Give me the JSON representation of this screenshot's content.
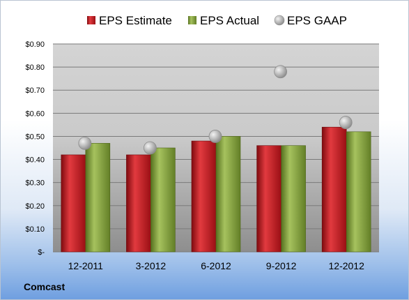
{
  "chart_data": {
    "type": "bar",
    "title": "",
    "xlabel": "",
    "ylabel": "",
    "categories": [
      "12-2011",
      "3-2012",
      "6-2012",
      "9-2012",
      "12-2012"
    ],
    "series": [
      {
        "name": "EPS Estimate",
        "kind": "bar",
        "color": "#c0161c",
        "values": [
          0.42,
          0.42,
          0.48,
          0.46,
          0.54
        ]
      },
      {
        "name": "EPS Actual",
        "kind": "bar",
        "color": "#7f9a3a",
        "values": [
          0.47,
          0.45,
          0.5,
          0.46,
          0.52
        ]
      },
      {
        "name": "EPS GAAP",
        "kind": "scatter",
        "color": "#a8a8a8",
        "values": [
          0.47,
          0.45,
          0.5,
          0.78,
          0.56
        ]
      }
    ],
    "ylim": [
      0,
      0.9
    ],
    "yticks": [
      0,
      0.1,
      0.2,
      0.3,
      0.4,
      0.5,
      0.6,
      0.7,
      0.8,
      0.9
    ],
    "ytick_labels": [
      "$-",
      "$0.10",
      "$0.20",
      "$0.30",
      "$0.40",
      "$0.50",
      "$0.60",
      "$0.70",
      "$0.80",
      "$0.90"
    ],
    "grid": true,
    "legend": "top"
  },
  "footer": {
    "company": "Comcast"
  }
}
